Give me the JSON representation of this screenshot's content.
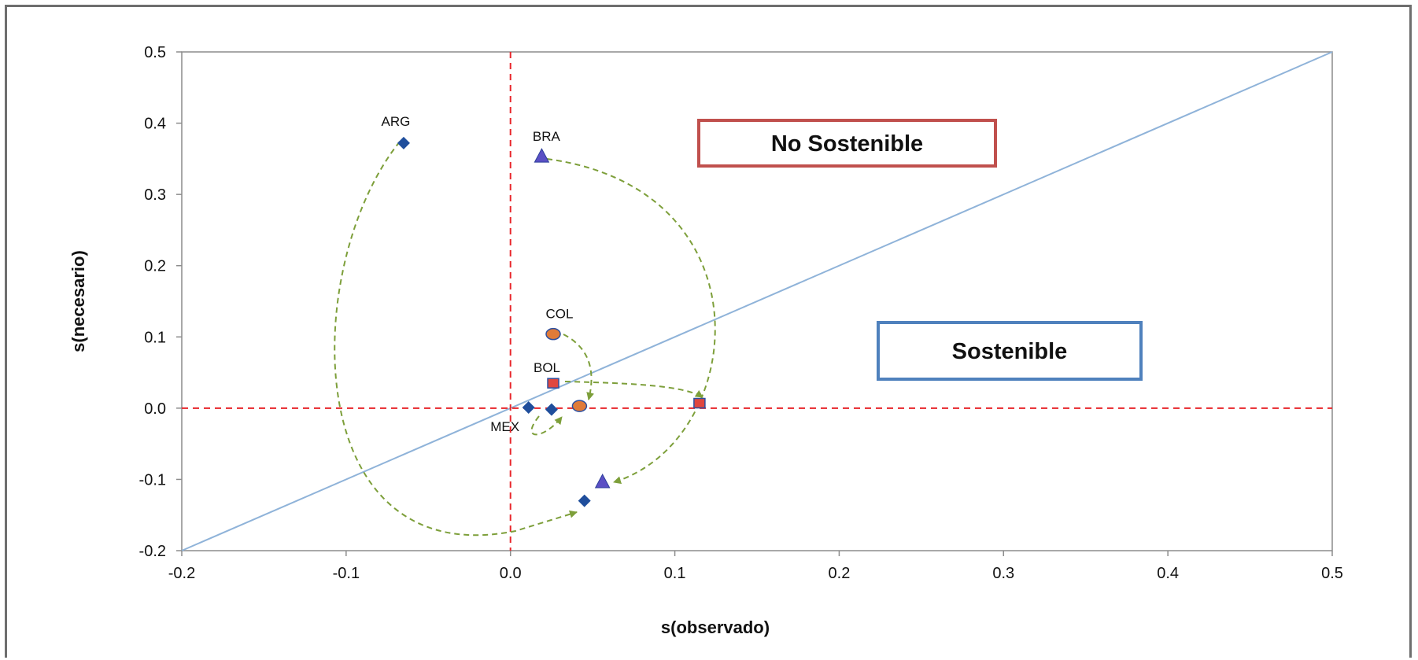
{
  "chart_data": {
    "type": "scatter",
    "title": "",
    "xlabel": "s(observado)",
    "ylabel": "s(necesario)",
    "xlim": [
      -0.2,
      0.5
    ],
    "ylim": [
      -0.2,
      0.5
    ],
    "xticks": [
      "-0.2",
      "-0.1",
      "0.0",
      "0.1",
      "0.2",
      "0.3",
      "0.4",
      "0.5"
    ],
    "yticks": [
      "0.5",
      "0.4",
      "0.3",
      "0.2",
      "0.1",
      "0.0",
      "-0.1",
      "-0.2"
    ],
    "xtick_values": [
      -0.2,
      -0.1,
      0.0,
      0.1,
      0.2,
      0.3,
      0.4,
      0.5
    ],
    "ytick_values": [
      0.5,
      0.4,
      0.3,
      0.2,
      0.1,
      0.0,
      -0.1,
      -0.2
    ],
    "grid": false,
    "legend": "none",
    "reference_lines": [
      {
        "type": "diagonal",
        "from": [
          -0.2,
          -0.2
        ],
        "to": [
          0.5,
          0.5
        ],
        "color": "#8fb3d9"
      },
      {
        "type": "horizontal",
        "y": 0.0,
        "color": "#e8262b",
        "style": "dashed"
      },
      {
        "type": "vertical",
        "x": 0.0,
        "color": "#e8262b",
        "style": "dashed"
      }
    ],
    "regions": [
      {
        "label": "No Sostenible",
        "position": "upper-middle",
        "border_color": "#c0504d"
      },
      {
        "label": "Sostenible",
        "position": "middle-right",
        "border_color": "#4f81bd"
      }
    ],
    "series": [
      {
        "name": "ARG",
        "marker": "diamond",
        "color": "#1f4e9c",
        "points": [
          {
            "x": -0.065,
            "y": 0.372
          },
          {
            "x": 0.045,
            "y": -0.13
          }
        ]
      },
      {
        "name": "BRA",
        "marker": "triangle",
        "color": "#5a4fc4",
        "points": [
          {
            "x": 0.019,
            "y": 0.353
          },
          {
            "x": 0.056,
            "y": -0.104
          }
        ]
      },
      {
        "name": "COL",
        "marker": "circle",
        "color": "#e07b39",
        "points": [
          {
            "x": 0.026,
            "y": 0.104
          },
          {
            "x": 0.042,
            "y": 0.003
          }
        ]
      },
      {
        "name": "BOL",
        "marker": "square",
        "color": "#e0473f",
        "points": [
          {
            "x": 0.026,
            "y": 0.035
          },
          {
            "x": 0.115,
            "y": 0.007
          }
        ]
      },
      {
        "name": "MEX",
        "marker": "diamond",
        "color": "#1f4e9c",
        "points": [
          {
            "x": 0.011,
            "y": 0.001
          },
          {
            "x": 0.025,
            "y": -0.002
          }
        ]
      }
    ],
    "arrow_color": "#7d9f3a",
    "point_labels": [
      {
        "text": "ARG",
        "x": -0.065,
        "y": 0.372
      },
      {
        "text": "BRA",
        "x": 0.019,
        "y": 0.353
      },
      {
        "text": "COL",
        "x": 0.026,
        "y": 0.104
      },
      {
        "text": "BOL",
        "x": 0.026,
        "y": 0.035
      },
      {
        "text": "MEX",
        "x": 0.011,
        "y": 0.001
      }
    ]
  }
}
